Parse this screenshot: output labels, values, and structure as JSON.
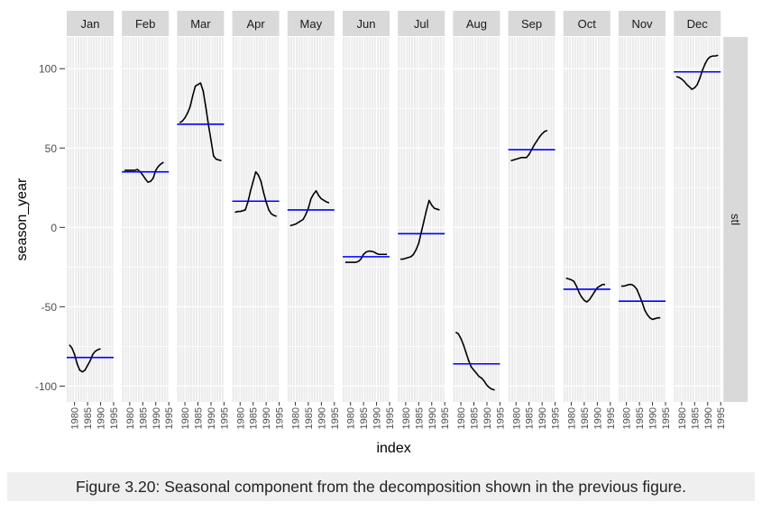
{
  "chart_data": {
    "type": "line",
    "facet_labels": [
      "Jan",
      "Feb",
      "Mar",
      "Apr",
      "May",
      "Jun",
      "Jul",
      "Aug",
      "Sep",
      "Oct",
      "Nov",
      "Dec"
    ],
    "strip_right": "stl",
    "xlabel": "index",
    "ylabel": "season_year",
    "x_ticks": [
      "1980",
      "1985",
      "1990",
      "1995"
    ],
    "y_ticks": [
      100,
      50,
      0,
      -50,
      -100
    ],
    "xlim": [
      1977,
      1995
    ],
    "ylim": [
      -110,
      120
    ],
    "x": [
      1978,
      1979,
      1980,
      1981,
      1982,
      1983,
      1984,
      1985,
      1986,
      1987,
      1988,
      1989,
      1990,
      1991,
      1992,
      1993,
      1994
    ],
    "series": [
      {
        "values": [
          -74,
          -76,
          -80,
          -86,
          -90,
          -91,
          -90,
          -87,
          -84,
          -80,
          -78,
          -77,
          -76.5,
          null,
          null,
          null,
          null
        ],
        "mean": -82
      },
      {
        "values": [
          36,
          36,
          36,
          36,
          36,
          36.5,
          35,
          33,
          30.5,
          28.5,
          29,
          31,
          36,
          38.5,
          40,
          41,
          null
        ],
        "mean": 35
      },
      {
        "values": [
          66,
          67,
          69,
          72,
          76,
          83,
          89,
          90,
          91,
          86,
          76,
          65,
          55,
          45,
          43,
          42.5,
          42
        ],
        "mean": 65
      },
      {
        "values": [
          9.5,
          10,
          10,
          10.5,
          11,
          16,
          23,
          29,
          35,
          33,
          29,
          22,
          16,
          11,
          8.5,
          7.5,
          7
        ],
        "mean": 16.5
      },
      {
        "values": [
          1,
          1.5,
          2,
          3,
          4,
          5,
          8,
          12,
          18,
          21,
          23,
          20,
          18,
          17,
          16,
          15.5,
          null
        ],
        "mean": 11
      },
      {
        "values": [
          -22,
          -22,
          -22,
          -22,
          -22,
          -21.5,
          -20,
          -17,
          -15.5,
          -15,
          -15,
          -15.5,
          -16.5,
          -17,
          -17,
          -17,
          -17
        ],
        "mean": -18.5
      },
      {
        "values": [
          -20,
          -20,
          -19.5,
          -19,
          -18.5,
          -17,
          -14,
          -10,
          -3,
          4,
          11,
          17,
          14,
          12,
          11.5,
          11,
          null
        ],
        "mean": -4
      },
      {
        "values": [
          -66,
          -67,
          -70,
          -74,
          -79,
          -84,
          -88,
          -90,
          -92,
          -94,
          -95,
          -97,
          -99.5,
          -101,
          -102,
          -102.5,
          null
        ],
        "mean": -86
      },
      {
        "values": [
          42,
          42.5,
          43,
          43.5,
          44,
          44,
          44,
          46,
          49,
          52,
          54.5,
          57,
          59,
          60.5,
          61,
          null,
          null
        ],
        "mean": 49
      },
      {
        "values": [
          -32,
          -32.5,
          -33,
          -34,
          -37,
          -41,
          -44,
          -46,
          -47,
          -45.5,
          -43,
          -40.5,
          -38,
          -37,
          -36,
          -36,
          null
        ],
        "mean": -39
      },
      {
        "values": [
          -37,
          -37,
          -36.5,
          -36,
          -36,
          -37,
          -39,
          -43,
          -47,
          -52,
          -55,
          -57,
          -58,
          -57.5,
          -57,
          -57,
          null
        ],
        "mean": -46.5
      },
      {
        "values": [
          95,
          94.5,
          93.5,
          92,
          90,
          88.5,
          87,
          88,
          90,
          94,
          99,
          103,
          106,
          107.5,
          108,
          108,
          108.5
        ],
        "mean": 98
      }
    ],
    "colors": {
      "line": "#000000",
      "mean_line": "#0000ff",
      "panel_bg": "#ebebeb",
      "strip_bg": "#d9d9d9",
      "grid": "#ffffff"
    }
  },
  "caption": "Figure 3.20: Seasonal component from the decomposition shown in the previous figure."
}
